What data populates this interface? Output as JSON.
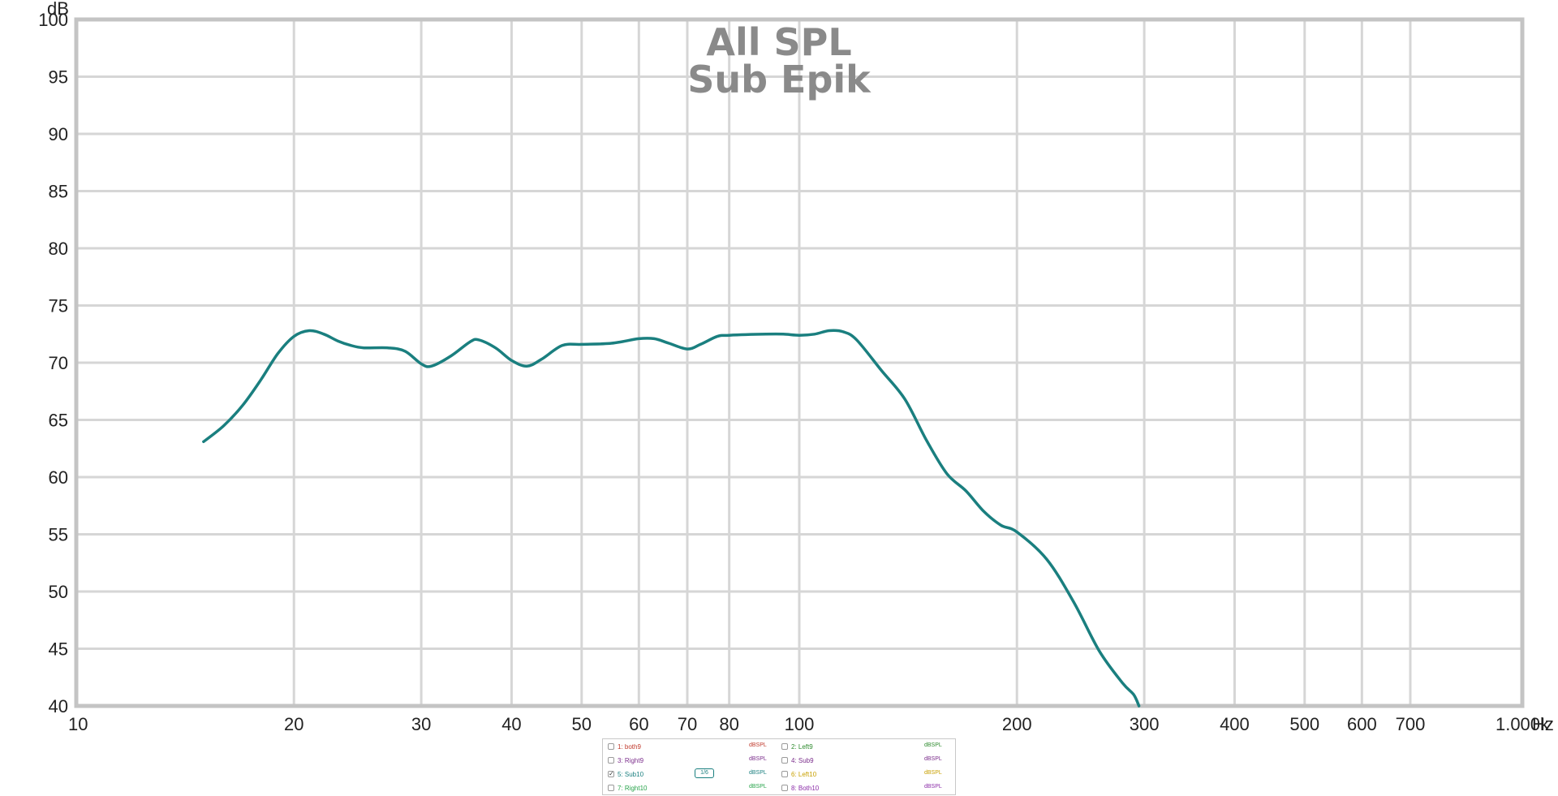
{
  "chart_data": {
    "type": "line",
    "title": "All SPL",
    "subtitle": "Sub Epik",
    "ylabel": "dB",
    "xlabel": "Hz",
    "x_scale": "log",
    "xlim": [
      10,
      1000
    ],
    "ylim": [
      40,
      100
    ],
    "grid": true,
    "x_ticks": [
      10,
      20,
      30,
      40,
      50,
      60,
      70,
      80,
      100,
      200,
      300,
      400,
      500,
      600,
      700,
      1000
    ],
    "x_tick_labels": [
      "10",
      "20",
      "30",
      "40",
      "50",
      "60",
      "70",
      "80",
      "100",
      "200",
      "300",
      "400",
      "500",
      "600",
      "700",
      "1.000k"
    ],
    "y_ticks": [
      40,
      45,
      50,
      55,
      60,
      65,
      70,
      75,
      80,
      85,
      90,
      95,
      100
    ],
    "series": [
      {
        "name": "5: Sub10",
        "color": "#1a7f7f",
        "x": [
          15,
          16,
          17,
          18,
          19,
          20,
          21,
          22,
          23,
          24,
          25,
          27,
          28.5,
          30,
          31,
          33,
          35,
          36,
          38,
          40,
          42,
          44,
          47,
          50,
          55,
          60,
          63,
          66,
          70,
          73,
          77,
          80,
          90,
          95,
          100,
          105,
          110,
          115,
          120,
          130,
          140,
          150,
          160,
          170,
          180,
          190,
          200,
          220,
          240,
          260,
          280,
          290,
          295
        ],
        "y": [
          63.1,
          64.5,
          66.3,
          68.5,
          70.8,
          72.3,
          72.8,
          72.5,
          71.9,
          71.5,
          71.3,
          71.3,
          71.0,
          69.9,
          69.7,
          70.6,
          71.8,
          72.0,
          71.3,
          70.2,
          69.7,
          70.3,
          71.5,
          71.6,
          71.7,
          72.1,
          72.1,
          71.7,
          71.2,
          71.6,
          72.3,
          72.4,
          72.5,
          72.5,
          72.4,
          72.5,
          72.8,
          72.7,
          72.0,
          69.3,
          66.8,
          63.2,
          60.3,
          58.8,
          57.0,
          55.8,
          55.2,
          52.8,
          49.0,
          44.8,
          42.0,
          41.0,
          40.0
        ]
      }
    ],
    "legend": {
      "placement": "bottom-center",
      "entries": [
        {
          "label": "1: both9",
          "color": "#c0392b",
          "checked": false
        },
        {
          "label": "2: Left9",
          "color": "#2e8b2e",
          "checked": false
        },
        {
          "label": "3: Right9",
          "color": "#7b2d8b",
          "checked": false
        },
        {
          "label": "4: Sub9",
          "color": "#7b2d8b",
          "checked": false
        },
        {
          "label": "5: Sub10",
          "color": "#1a7f7f",
          "checked": true
        },
        {
          "label": "6: Left10",
          "color": "#c8a000",
          "checked": false
        },
        {
          "label": "7: Right10",
          "color": "#27a34a",
          "checked": false
        },
        {
          "label": "8: Both10",
          "color": "#8b2da8",
          "checked": false
        }
      ],
      "tag": "dBSPL",
      "smoothing": "1/6"
    }
  }
}
